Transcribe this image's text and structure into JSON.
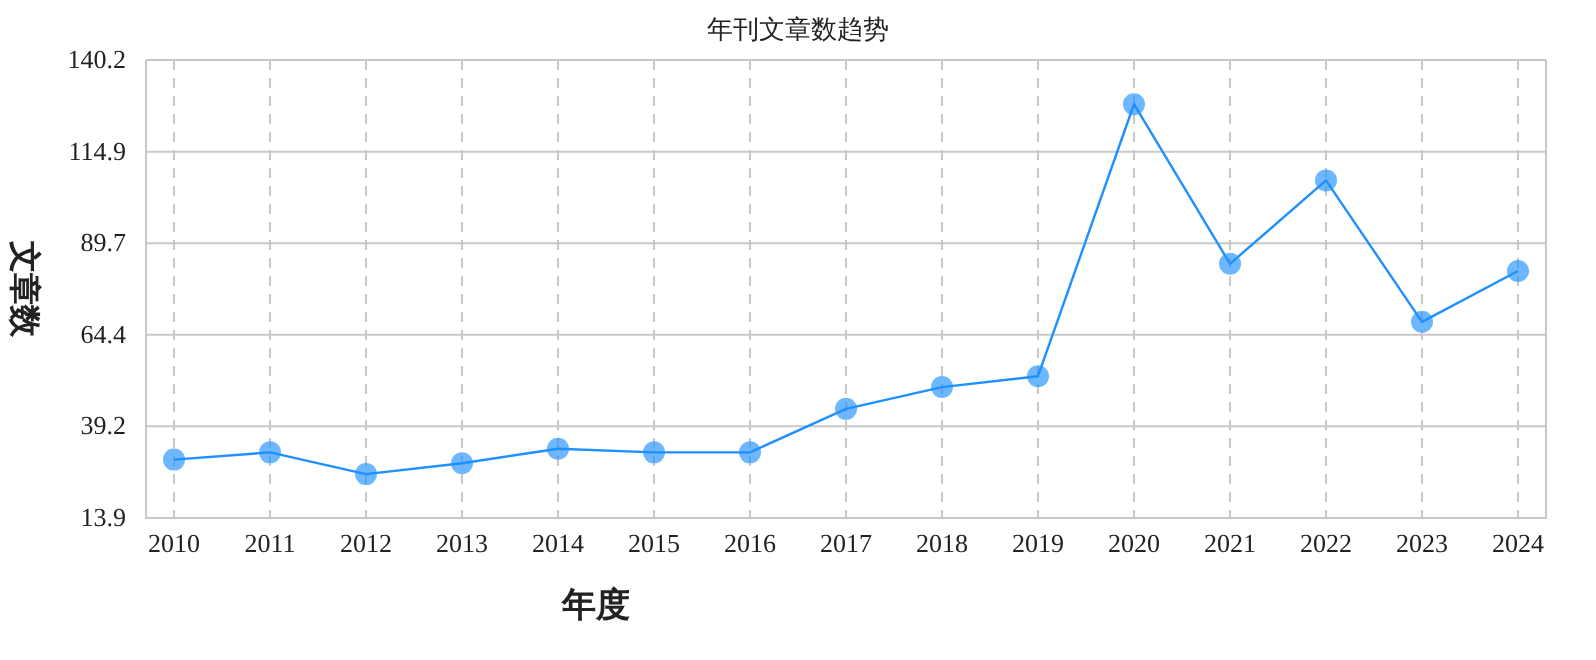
{
  "chart_data": {
    "type": "line",
    "title": "年刊文章数趋势",
    "xlabel": "年度",
    "ylabel": "文章数",
    "categories": [
      "2010",
      "2011",
      "2012",
      "2013",
      "2014",
      "2015",
      "2016",
      "2017",
      "2018",
      "2019",
      "2020",
      "2021",
      "2022",
      "2023",
      "2024"
    ],
    "values": [
      30,
      32,
      26,
      29,
      33,
      32,
      32,
      44,
      50,
      53,
      128,
      84,
      107,
      68,
      82
    ],
    "color": "#1e90ff",
    "marker": "circle",
    "grid": true,
    "ylim": [
      13.9,
      140.2
    ],
    "yticks": [
      13.9,
      39.2,
      64.4,
      89.7,
      114.9,
      140.2
    ]
  }
}
